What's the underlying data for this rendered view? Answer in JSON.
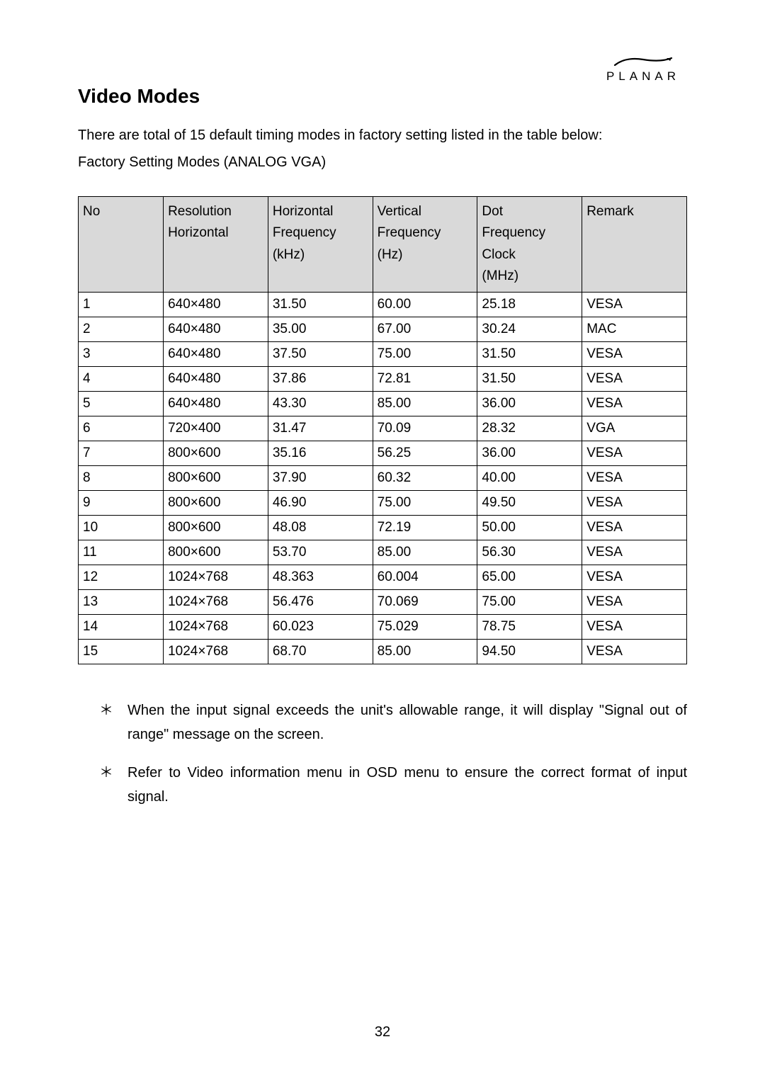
{
  "logo_text": "PLANAR",
  "section_title": "Video Modes",
  "intro_text": "There are total of 15 default timing modes in factory setting listed in the table below:",
  "subintro_text": "Factory Setting Modes (ANALOG VGA)",
  "table": {
    "header_bg": "#d9d9d9",
    "border_color": "#000000",
    "columns": [
      {
        "lines": [
          "No"
        ]
      },
      {
        "lines": [
          "Resolution",
          "Horizontal"
        ]
      },
      {
        "lines": [
          "Horizontal",
          "Frequency",
          "(kHz)"
        ]
      },
      {
        "lines": [
          "Vertical",
          "Frequency",
          "(Hz)"
        ]
      },
      {
        "lines": [
          "Dot",
          "Frequency",
          "Clock",
          "(MHz)"
        ]
      },
      {
        "lines": [
          "Remark"
        ]
      }
    ],
    "rows": [
      [
        "1",
        "640×480",
        "31.50",
        "60.00",
        "25.18",
        "VESA"
      ],
      [
        "2",
        "640×480",
        "35.00",
        "67.00",
        "30.24",
        "MAC"
      ],
      [
        "3",
        "640×480",
        "37.50",
        "75.00",
        "31.50",
        "VESA"
      ],
      [
        "4",
        "640×480",
        "37.86",
        "72.81",
        "31.50",
        "VESA"
      ],
      [
        "5",
        "640×480",
        "43.30",
        "85.00",
        "36.00",
        "VESA"
      ],
      [
        "6",
        "720×400",
        "31.47",
        "70.09",
        "28.32",
        "VGA"
      ],
      [
        "7",
        "800×600",
        "35.16",
        "56.25",
        "36.00",
        "VESA"
      ],
      [
        "8",
        "800×600",
        "37.90",
        "60.32",
        "40.00",
        "VESA"
      ],
      [
        "9",
        "800×600",
        "46.90",
        "75.00",
        "49.50",
        "VESA"
      ],
      [
        "10",
        "800×600",
        "48.08",
        "72.19",
        "50.00",
        "VESA"
      ],
      [
        "11",
        "800×600",
        "53.70",
        "85.00",
        "56.30",
        "VESA"
      ],
      [
        "12",
        "1024×768",
        "48.363",
        "60.004",
        "65.00",
        "VESA"
      ],
      [
        "13",
        "1024×768",
        "56.476",
        "70.069",
        "75.00",
        "VESA"
      ],
      [
        "14",
        "1024×768",
        "60.023",
        "75.029",
        "78.75",
        "VESA"
      ],
      [
        "15",
        "1024×768",
        "68.70",
        "85.00",
        "94.50",
        "VESA"
      ]
    ]
  },
  "notes_bullet": "＊",
  "notes": [
    "When the input signal exceeds the unit's allowable range, it will display \"Signal out of range\" message on the screen.",
    "Refer to Video information menu in OSD menu to ensure the correct format of input signal."
  ],
  "page_number": "32"
}
